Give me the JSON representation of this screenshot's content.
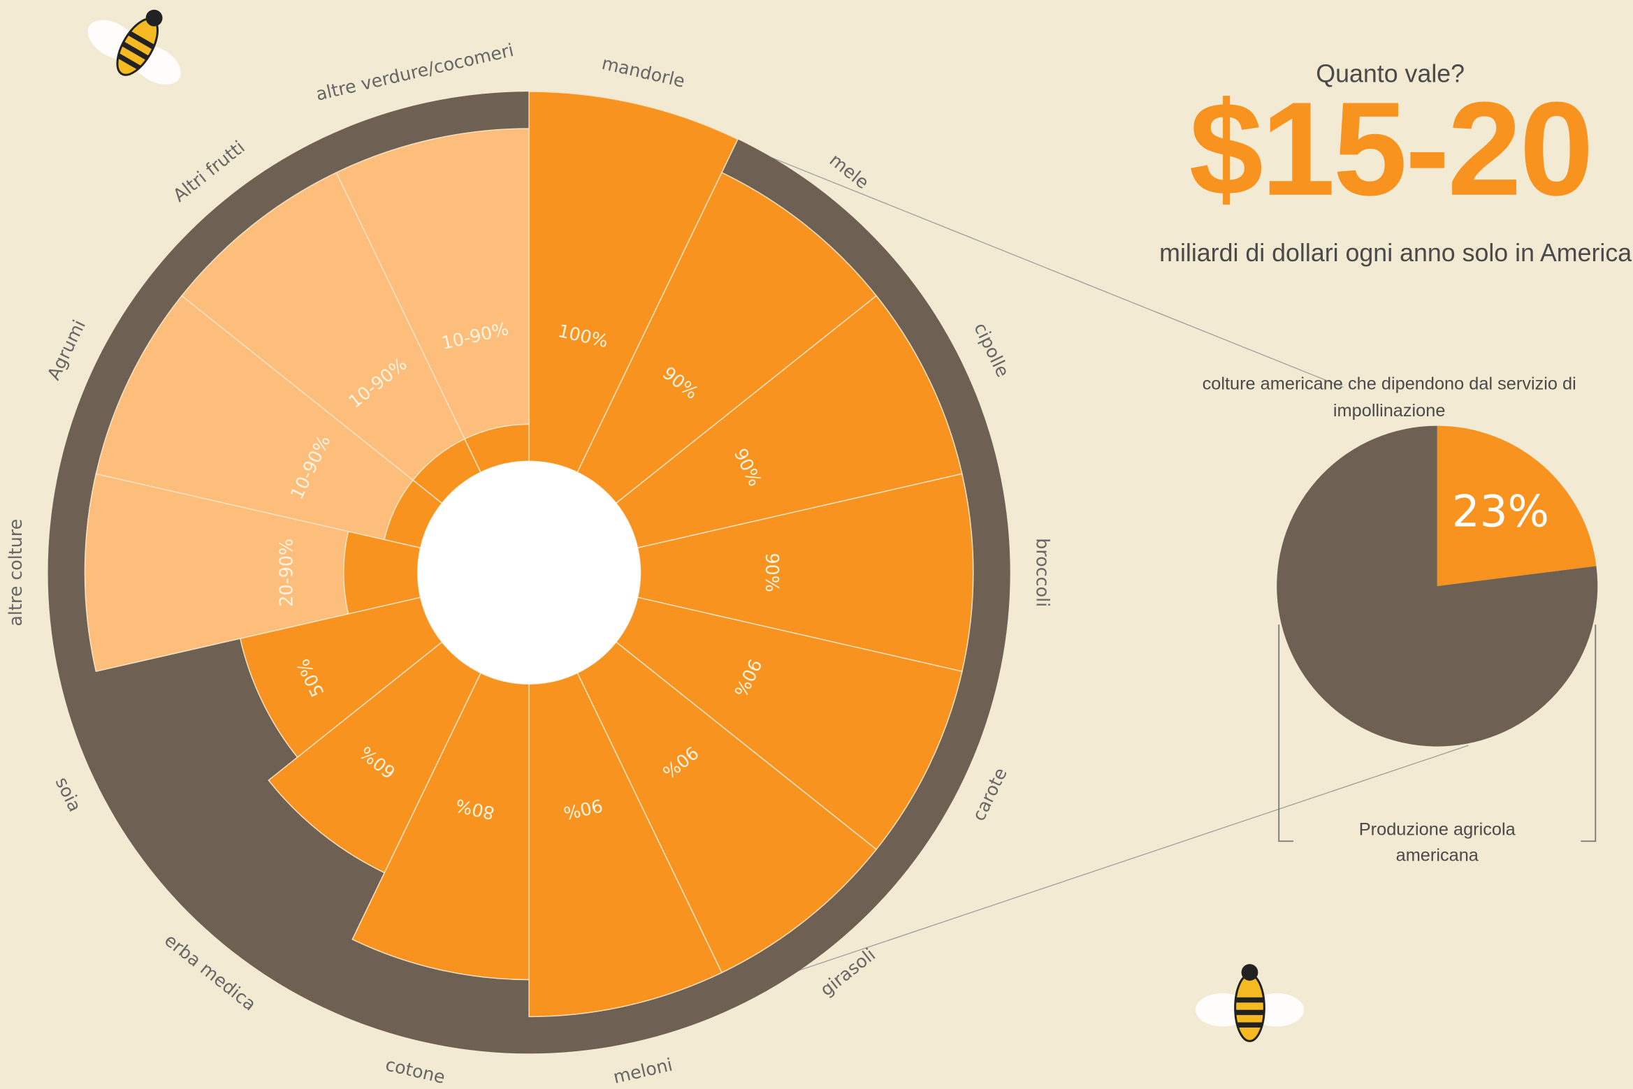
{
  "headline": {
    "question": "Quanto vale?",
    "amount": "$15-20",
    "subtitle": "miliardi di dollari ogni anno solo in America"
  },
  "chart_data": [
    {
      "type": "radial-bar",
      "categories": [
        "mandorle",
        "mele",
        "cipolle",
        "broccoli",
        "carote",
        "girasoli",
        "meloni",
        "cotone",
        "erba medica",
        "soia",
        "altre colture",
        "Agrumi",
        "Altri frutti",
        "altre verdure/cocomeri"
      ],
      "values": [
        100,
        90,
        90,
        90,
        90,
        90,
        90,
        80,
        60,
        50,
        90,
        90,
        90,
        90
      ],
      "low_values": [
        null,
        null,
        null,
        null,
        null,
        null,
        null,
        null,
        null,
        null,
        20,
        10,
        10,
        10
      ],
      "value_labels": [
        "100%",
        "90%",
        "90%",
        "90%",
        "90%",
        "90%",
        "90%",
        "80%",
        "60%",
        "50%",
        "20-90%",
        "10-90%",
        "10-90%",
        "10-90%"
      ],
      "rlim": [
        0,
        100
      ],
      "color": "#f7931e",
      "range_color": "#fdbd7b",
      "track_color": "#6e6153"
    },
    {
      "type": "pie",
      "title": "colture americane che dipendono dal servizio di impollinazione",
      "caption": "Produzione agricola americana",
      "values": [
        23,
        77
      ],
      "value_labels": [
        "23%",
        null
      ],
      "colors": [
        "#f7931e",
        "#6e6153"
      ]
    }
  ]
}
